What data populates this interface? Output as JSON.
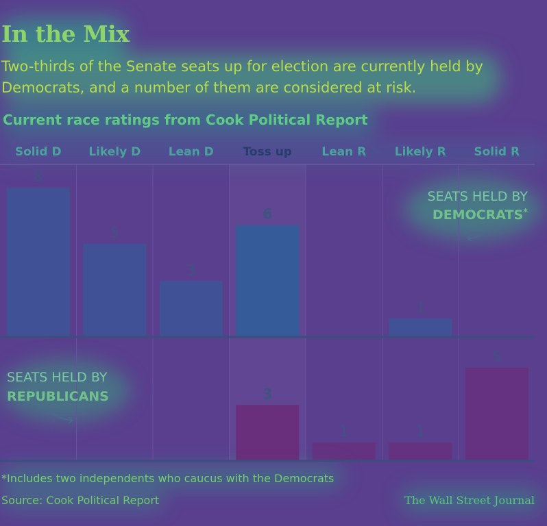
{
  "title": "In the Mix",
  "subtitle": "Two-thirds of the Senate seats up for election are currently held by Democrats, and a number of them are considered at risk.",
  "chart_heading": "Current race ratings from Cook Political Report",
  "chart_data": {
    "type": "bar",
    "title": "Current race ratings from Cook Political Report",
    "categories": [
      "Solid D",
      "Likely D",
      "Lean D",
      "Toss up",
      "Lean R",
      "Likely R",
      "Solid R"
    ],
    "highlight_category": "Toss up",
    "series": [
      {
        "name": "Seats held by Democrats*",
        "annotation_line1": "SEATS HELD BY",
        "annotation_line2": "DEMOCRATS",
        "annotation_mark": "*",
        "values": [
          8,
          5,
          3,
          6,
          0,
          1,
          0
        ],
        "color": "#2f5f9a"
      },
      {
        "name": "Seats held by Republicans",
        "annotation_line1": "SEATS HELD BY",
        "annotation_line2": "REPUBLICANS",
        "values": [
          0,
          0,
          0,
          3,
          1,
          1,
          5
        ],
        "color": "#6b2a78"
      }
    ],
    "ylim": [
      0,
      8
    ],
    "grid": false,
    "legend": "inline annotations"
  },
  "colors": {
    "background": "#5a3f8f",
    "category_label": "#4aa39a",
    "category_label_highlight": "#283c6e",
    "baseline": "#3b4f7e",
    "value_label": "#3d5483"
  },
  "footnote": "*Includes two independents who caucus with the Democrats",
  "source": "Source: Cook Political Report",
  "credit": "The Wall Street Journal"
}
